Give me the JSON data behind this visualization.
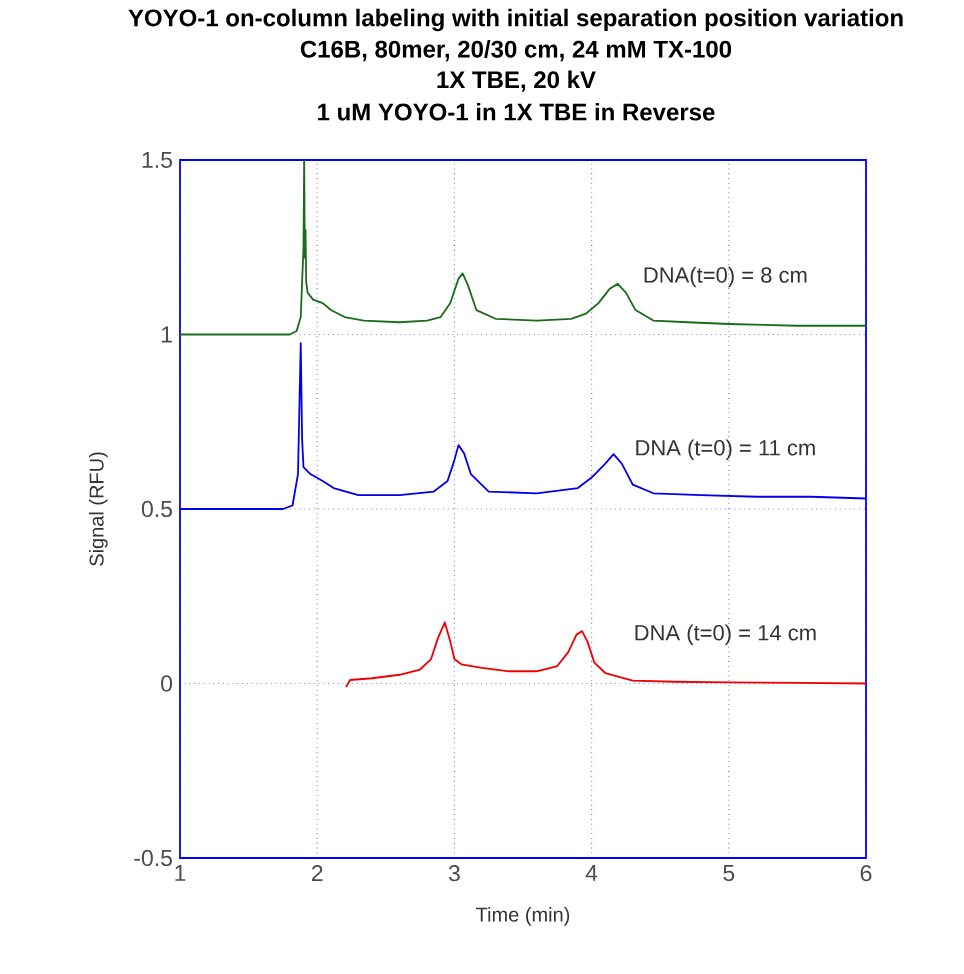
{
  "chart_data": {
    "type": "line",
    "title": "YOYO-1 on-column labeling with initial separation position variation",
    "subtitle": "C16B, 80mer, 20/30 cm, 24 mM TX-100",
    "annotations": [
      "1X TBE, 20 kV",
      "1 uM YOYO-1 in 1X TBE in Reverse"
    ],
    "xlabel": "Time (min)",
    "ylabel": "Signal (RFU)",
    "xlim": [
      1,
      6
    ],
    "ylim": [
      -0.5,
      1.5
    ],
    "xticks": [
      1,
      2,
      3,
      4,
      5,
      6
    ],
    "yticks": [
      -0.5,
      0,
      0.5,
      1,
      1.5
    ],
    "grid": true,
    "line_style": "solid",
    "series": [
      {
        "name": "DNA(t=0) = 8 cm",
        "color": "#1a6b1a",
        "x": [
          1.0,
          1.8,
          1.85,
          1.88,
          1.9,
          1.905,
          1.91,
          1.915,
          1.92,
          1.93,
          1.97,
          2.04,
          2.1,
          2.2,
          2.34,
          2.6,
          2.8,
          2.9,
          2.97,
          3.03,
          3.06,
          3.1,
          3.16,
          3.3,
          3.6,
          3.85,
          3.96,
          4.05,
          4.13,
          4.19,
          4.25,
          4.32,
          4.45,
          4.7,
          5.0,
          5.5,
          6.0
        ],
        "values": [
          1.0,
          1.0,
          1.01,
          1.05,
          1.25,
          1.5,
          1.22,
          1.3,
          1.15,
          1.12,
          1.1,
          1.09,
          1.07,
          1.05,
          1.04,
          1.035,
          1.04,
          1.05,
          1.09,
          1.16,
          1.175,
          1.14,
          1.07,
          1.045,
          1.04,
          1.045,
          1.06,
          1.09,
          1.13,
          1.145,
          1.12,
          1.07,
          1.04,
          1.035,
          1.03,
          1.025,
          1.025
        ]
      },
      {
        "name": "DNA (t=0) = 11 cm",
        "color": "#0000ee",
        "x": [
          1.0,
          1.75,
          1.82,
          1.86,
          1.88,
          1.89,
          1.9,
          1.95,
          2.04,
          2.12,
          2.3,
          2.6,
          2.85,
          2.95,
          3.0,
          3.03,
          3.07,
          3.12,
          3.25,
          3.6,
          3.9,
          4.0,
          4.1,
          4.16,
          4.22,
          4.3,
          4.45,
          4.8,
          5.2,
          5.6,
          6.0
        ],
        "values": [
          0.5,
          0.5,
          0.51,
          0.6,
          0.975,
          0.7,
          0.62,
          0.6,
          0.58,
          0.56,
          0.54,
          0.54,
          0.55,
          0.58,
          0.64,
          0.683,
          0.66,
          0.6,
          0.55,
          0.545,
          0.56,
          0.59,
          0.63,
          0.657,
          0.63,
          0.57,
          0.545,
          0.54,
          0.535,
          0.535,
          0.53
        ]
      },
      {
        "name": "DNA (t=0) = 14 cm",
        "color": "#ee0000",
        "x": [
          2.21,
          2.24,
          2.4,
          2.6,
          2.75,
          2.83,
          2.88,
          2.93,
          2.97,
          3.0,
          3.05,
          3.2,
          3.4,
          3.6,
          3.75,
          3.83,
          3.89,
          3.93,
          3.97,
          4.02,
          4.1,
          4.3,
          4.6,
          5.0,
          5.5,
          6.0
        ],
        "values": [
          -0.01,
          0.01,
          0.015,
          0.025,
          0.04,
          0.07,
          0.13,
          0.175,
          0.12,
          0.07,
          0.055,
          0.045,
          0.035,
          0.035,
          0.05,
          0.09,
          0.14,
          0.15,
          0.12,
          0.06,
          0.03,
          0.008,
          0.005,
          0.003,
          0.002,
          0.0
        ]
      }
    ]
  }
}
